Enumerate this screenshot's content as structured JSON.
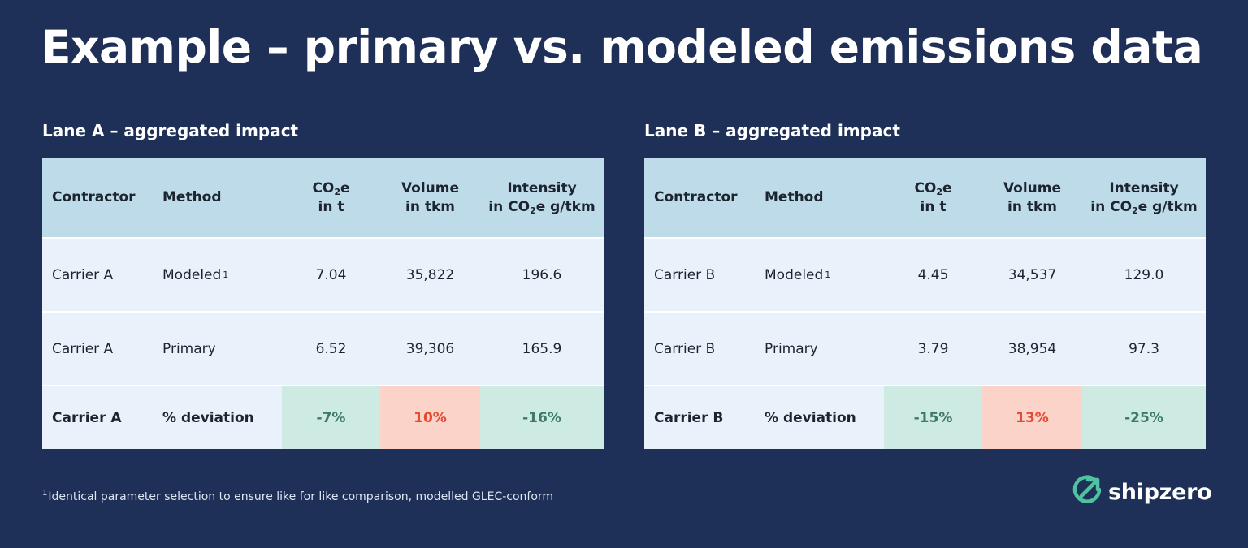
{
  "title": "Example – primary vs. modeled emissions data",
  "columns": {
    "contractor": "Contractor",
    "method": "Method",
    "co2_pre": "CO",
    "co2_sub": "2",
    "co2_post": "e",
    "co2_unit": "in t",
    "volume": "Volume",
    "volume_unit": "in tkm",
    "intensity": "Intensity",
    "intensity_unit_pre": "in CO",
    "intensity_unit_sub": "2",
    "intensity_unit_post": "e g/tkm"
  },
  "lanes": [
    {
      "title": "Lane A – aggregated impact",
      "rows": [
        {
          "contractor": "Carrier A",
          "method": "Modeled",
          "sup": "1",
          "co2e": "7.04",
          "volume": "35,822",
          "intensity": "196.6"
        },
        {
          "contractor": "Carrier A",
          "method": "Primary",
          "co2e": "6.52",
          "volume": "39,306",
          "intensity": "165.9"
        }
      ],
      "deviation": {
        "contractor": "Carrier A",
        "method": "% deviation",
        "co2e": "-7%",
        "volume": "10%",
        "intensity": "-16%"
      }
    },
    {
      "title": "Lane B – aggregated impact",
      "rows": [
        {
          "contractor": "Carrier B",
          "method": "Modeled",
          "sup": "1",
          "co2e": "4.45",
          "volume": "34,537",
          "intensity": "129.0"
        },
        {
          "contractor": "Carrier B",
          "method": "Primary",
          "co2e": "3.79",
          "volume": "38,954",
          "intensity": "97.3"
        }
      ],
      "deviation": {
        "contractor": "Carrier B",
        "method": "% deviation",
        "co2e": "-15%",
        "volume": "13%",
        "intensity": "-25%"
      }
    }
  ],
  "footnote": {
    "marker": "1",
    "text": "Identical parameter selection to ensure like for like comparison, modelled GLEC-conform"
  },
  "logo": {
    "name": "shipzero",
    "icon": "shipzero-logo-icon",
    "accent": "#4fc3a1"
  },
  "colors": {
    "background": "#1e3057",
    "header": "#bedbe9",
    "body": "#e9f1fb",
    "negative_bg": "#cdebe3",
    "negative_text": "#3f7a64",
    "positive_bg": "#fbd3c9",
    "positive_text": "#e24a34"
  }
}
